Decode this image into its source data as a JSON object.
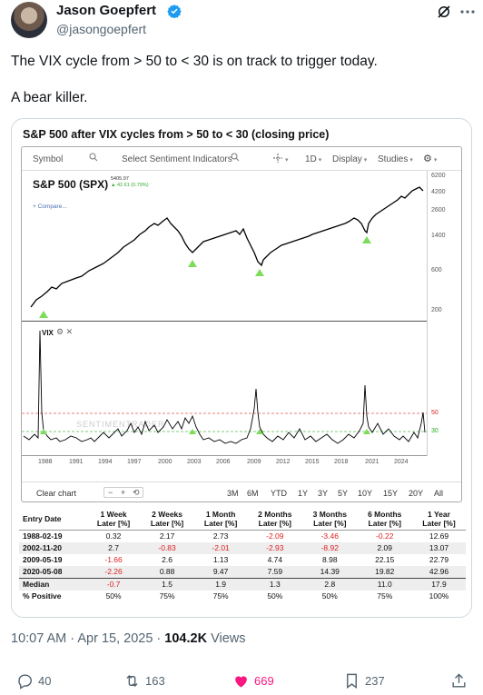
{
  "author": {
    "name": "Jason Goepfert",
    "handle": "@jasongoepfert"
  },
  "tweet": {
    "line1": "The VIX cycle from > 50 to < 30 is on track to trigger today.",
    "line2": "A bear killer."
  },
  "card": {
    "title": "S&P 500 after VIX cycles from > 50 to < 30 (closing price)",
    "toolbar": {
      "symbol": "Symbol",
      "sentiment": "Select Sentiment Indicators",
      "interval": "1D",
      "display": "Display",
      "studies": "Studies"
    },
    "spx": {
      "label": "S&P 500 (SPX)",
      "price": "5405.97",
      "change": "42.61 (0.79%)",
      "compare": "+ Compare..."
    },
    "vix": {
      "label": "VIX",
      "watermark": "SENTIMENTRADER"
    },
    "yaxis_spx": [
      "6200",
      "4200",
      "2600",
      "1400",
      "600",
      "200"
    ],
    "yaxis_vix": [
      "50",
      "30"
    ],
    "xaxis": [
      "1988",
      "1991",
      "1994",
      "1997",
      "2000",
      "2003",
      "2006",
      "2009",
      "2012",
      "2015",
      "2018",
      "2021",
      "2024"
    ],
    "range": {
      "clear": "Clear chart",
      "minus": "−",
      "plus": "+",
      "reset": "⟲",
      "options": [
        "3M",
        "6M",
        "YTD",
        "1Y",
        "3Y",
        "5Y",
        "10Y",
        "15Y",
        "20Y",
        "All"
      ]
    }
  },
  "table": {
    "headers": [
      "Entry Date",
      "1 Week Later [%]",
      "2 Weeks Later [%]",
      "1 Month Later [%]",
      "2 Months Later [%]",
      "3 Months Later [%]",
      "6 Months Later [%]",
      "1 Year Later [%]"
    ],
    "header_lines": [
      [
        "Entry Date",
        ""
      ],
      [
        "1 Week",
        "Later [%]"
      ],
      [
        "2 Weeks",
        "Later [%]"
      ],
      [
        "1 Month",
        "Later [%]"
      ],
      [
        "2 Months",
        "Later [%]"
      ],
      [
        "3 Months",
        "Later [%]"
      ],
      [
        "6 Months",
        "Later [%]"
      ],
      [
        "1 Year",
        "Later [%]"
      ]
    ],
    "rows": [
      [
        "1988-02-19",
        "0.32",
        "2.17",
        "2.73",
        "-2.09",
        "-3.46",
        "-0.22",
        "12.69"
      ],
      [
        "2002-11-20",
        "2.7",
        "-0.83",
        "-2.01",
        "-2.93",
        "-8.92",
        "2.09",
        "13.07"
      ],
      [
        "2009-05-19",
        "-1.66",
        "2.6",
        "1.13",
        "4.74",
        "8.98",
        "22.15",
        "22.79"
      ],
      [
        "2020-05-08",
        "-2.26",
        "0.88",
        "9.47",
        "7.59",
        "14.39",
        "19.82",
        "42.96"
      ]
    ],
    "summary": [
      [
        "Median",
        "-0.7",
        "1.5",
        "1.9",
        "1.3",
        "2.8",
        "11.0",
        "17.9"
      ],
      [
        "% Positive",
        "50%",
        "75%",
        "75%",
        "50%",
        "50%",
        "75%",
        "100%"
      ]
    ]
  },
  "meta": {
    "time": "10:07 AM · Apr 15, 2025 · ",
    "views_count": "104.2K",
    "views_label": " Views"
  },
  "actions": {
    "replies": "40",
    "reposts": "163",
    "likes": "669",
    "bookmarks": "237"
  },
  "colors": {
    "like": "#f91880",
    "muted": "#536471",
    "negative": "#dd2222",
    "signal": "#7ddc5a"
  }
}
